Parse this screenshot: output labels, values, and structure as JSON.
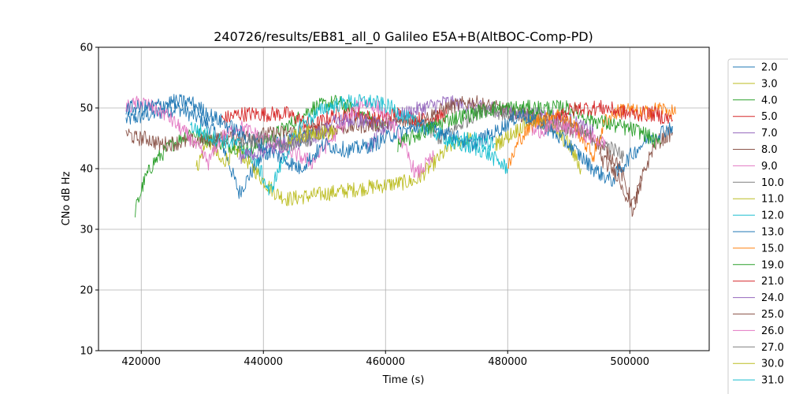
{
  "chart_data": {
    "type": "line",
    "title": "240726/results/EB81_all_0 Galileo E5A+B(AltBOC-Comp-PD)",
    "xlabel": "Time (s)",
    "ylabel": "CNo dB Hz",
    "xlim": [
      413000,
      513000
    ],
    "ylim": [
      10,
      60
    ],
    "xticks": [
      420000,
      440000,
      460000,
      480000,
      500000
    ],
    "xtick_labels": [
      "420000",
      "440000",
      "460000",
      "480000",
      "500000"
    ],
    "yticks": [
      10,
      20,
      30,
      40,
      50,
      60
    ],
    "ytick_labels": [
      "10",
      "20",
      "30",
      "40",
      "50",
      "60"
    ],
    "grid": true,
    "legend_position": "right (outside plot, cropped at bottom)",
    "series": [
      {
        "name": "2.0",
        "color": "#1f77b4",
        "points": [
          [
            417500,
            48
          ],
          [
            422000,
            49
          ],
          [
            426000,
            50
          ],
          [
            430000,
            48
          ],
          [
            433000,
            45
          ],
          [
            436000,
            36
          ],
          [
            439000,
            41
          ],
          [
            442000,
            44
          ],
          [
            446000,
            45
          ],
          [
            450000,
            46
          ]
        ]
      },
      {
        "name": "3.0",
        "color": "#bcbd22",
        "points": [
          [
            429000,
            40
          ],
          [
            431000,
            45
          ],
          [
            433000,
            41
          ],
          [
            436000,
            43
          ],
          [
            440000,
            38
          ],
          [
            442000,
            36
          ],
          [
            444000,
            35
          ],
          [
            465000,
            38
          ],
          [
            468000,
            41
          ],
          [
            471000,
            44
          ],
          [
            474000,
            45
          ]
        ]
      },
      {
        "name": "4.0",
        "color": "#2ca02c",
        "points": [
          [
            419000,
            33
          ],
          [
            420500,
            38
          ],
          [
            422000,
            41
          ],
          [
            425000,
            44
          ],
          [
            428000,
            46
          ],
          [
            431000,
            45
          ],
          [
            434000,
            44
          ],
          [
            438000,
            43
          ],
          [
            444000,
            47
          ],
          [
            448000,
            50
          ],
          [
            452000,
            51
          ],
          [
            456000,
            49
          ],
          [
            460000,
            47
          ]
        ]
      },
      {
        "name": "5.0",
        "color": "#d62728",
        "points": [
          [
            433000,
            48
          ],
          [
            436000,
            49
          ],
          [
            440000,
            49
          ],
          [
            444000,
            49
          ],
          [
            446000,
            48
          ],
          [
            448000,
            47
          ],
          [
            452000,
            49
          ],
          [
            456000,
            49
          ],
          [
            458000,
            48
          ],
          [
            462000,
            49
          ],
          [
            466000,
            48
          ],
          [
            470000,
            49
          ]
        ]
      },
      {
        "name": "7.0",
        "color": "#9467bd",
        "points": [
          [
            457000,
            43
          ],
          [
            460000,
            47
          ],
          [
            463000,
            49
          ],
          [
            466000,
            50
          ],
          [
            470000,
            51
          ],
          [
            474000,
            50
          ],
          [
            478000,
            50
          ],
          [
            482000,
            49
          ],
          [
            486000,
            49
          ],
          [
            490000,
            48
          ],
          [
            494000,
            46
          ]
        ]
      },
      {
        "name": "8.0",
        "color": "#8c564b",
        "points": [
          [
            417500,
            46
          ],
          [
            419000,
            45
          ],
          [
            421000,
            45
          ],
          [
            423000,
            44
          ],
          [
            466000,
            48
          ],
          [
            470000,
            50
          ],
          [
            474000,
            51
          ],
          [
            478000,
            50
          ],
          [
            482000,
            49
          ],
          [
            486000,
            48
          ],
          [
            490000,
            47
          ],
          [
            494000,
            45
          ],
          [
            498000,
            41
          ],
          [
            500500,
            34
          ],
          [
            501500,
            37
          ],
          [
            504000,
            44
          ],
          [
            507000,
            46
          ]
        ]
      },
      {
        "name": "9.0",
        "color": "#e377c2",
        "points": [
          [
            417500,
            50
          ],
          [
            420000,
            51
          ],
          [
            424000,
            49
          ],
          [
            428000,
            45
          ],
          [
            431000,
            41
          ],
          [
            433000,
            45
          ],
          [
            436000,
            47
          ],
          [
            440000,
            45
          ],
          [
            444000,
            43
          ],
          [
            448000,
            41
          ],
          [
            452000,
            46
          ],
          [
            456000,
            51
          ],
          [
            459000,
            50
          ],
          [
            462000,
            46
          ],
          [
            465000,
            39
          ],
          [
            468000,
            42
          ]
        ]
      },
      {
        "name": "10.0",
        "color": "#7f7f7f",
        "points": [
          [
            466000,
            47
          ],
          [
            469000,
            45
          ],
          [
            472000,
            47
          ],
          [
            476000,
            50
          ],
          [
            480000,
            49
          ],
          [
            484000,
            48
          ],
          [
            488000,
            47
          ],
          [
            492000,
            46
          ],
          [
            496000,
            44
          ],
          [
            499000,
            42
          ]
        ]
      },
      {
        "name": "11.0",
        "color": "#bcbd22",
        "points": [
          [
            478000,
            44
          ],
          [
            481000,
            46
          ],
          [
            484000,
            48
          ],
          [
            487000,
            47
          ],
          [
            490000,
            44
          ],
          [
            492000,
            40
          ]
        ]
      },
      {
        "name": "12.0",
        "color": "#17becf",
        "points": [
          [
            428000,
            47
          ],
          [
            432000,
            45
          ],
          [
            436000,
            44
          ],
          [
            439000,
            41
          ],
          [
            441000,
            36
          ],
          [
            443000,
            41
          ],
          [
            446000,
            47
          ],
          [
            450000,
            50
          ],
          [
            454000,
            51
          ],
          [
            458000,
            51
          ],
          [
            461000,
            50
          ],
          [
            464000,
            48
          ],
          [
            468000,
            46
          ],
          [
            472000,
            44
          ],
          [
            476000,
            43
          ],
          [
            480000,
            40
          ]
        ]
      },
      {
        "name": "13.0",
        "color": "#1f77b4",
        "points": [
          [
            417500,
            50
          ],
          [
            421000,
            50
          ],
          [
            425000,
            51
          ],
          [
            428000,
            51
          ],
          [
            431000,
            49
          ],
          [
            446000,
            40
          ],
          [
            450000,
            44
          ],
          [
            454000,
            43
          ],
          [
            458000,
            44
          ],
          [
            462000,
            46
          ],
          [
            466000,
            47
          ],
          [
            470000,
            46
          ],
          [
            474000,
            44
          ],
          [
            478000,
            46
          ],
          [
            482000,
            49
          ],
          [
            486000,
            47
          ],
          [
            490000,
            44
          ],
          [
            494000,
            40
          ],
          [
            497000,
            38
          ],
          [
            500000,
            42
          ],
          [
            503000,
            45
          ],
          [
            507000,
            47
          ]
        ]
      },
      {
        "name": "15.0",
        "color": "#ff7f0e",
        "points": [
          [
            480000,
            40
          ],
          [
            482000,
            45
          ],
          [
            485000,
            48
          ],
          [
            488000,
            49
          ],
          [
            491000,
            47
          ],
          [
            494000,
            42
          ],
          [
            496000,
            48
          ],
          [
            499000,
            50
          ],
          [
            502000,
            49
          ],
          [
            505000,
            50
          ],
          [
            507500,
            49
          ]
        ]
      },
      {
        "name": "19.0",
        "color": "#2ca02c",
        "points": [
          [
            462000,
            44
          ],
          [
            466000,
            46
          ],
          [
            470000,
            48
          ],
          [
            474000,
            49
          ],
          [
            478000,
            50
          ],
          [
            482000,
            50
          ],
          [
            486000,
            50
          ],
          [
            490000,
            50
          ],
          [
            494000,
            48
          ],
          [
            498000,
            47
          ],
          [
            502000,
            46
          ],
          [
            505000,
            44
          ]
        ]
      },
      {
        "name": "21.0",
        "color": "#d62728",
        "points": [
          [
            488000,
            49
          ],
          [
            492000,
            50
          ],
          [
            496000,
            50
          ],
          [
            500000,
            49
          ],
          [
            504000,
            49
          ],
          [
            507000,
            48
          ]
        ]
      },
      {
        "name": "24.0",
        "color": "#9467bd",
        "points": [
          [
            436000,
            42
          ],
          [
            440000,
            43
          ],
          [
            444000,
            44
          ],
          [
            448000,
            45
          ],
          [
            452000,
            48
          ],
          [
            456000,
            48
          ],
          [
            460000,
            47
          ]
        ]
      },
      {
        "name": "25.0",
        "color": "#8c564b",
        "points": [
          [
            495000,
            42
          ],
          [
            498000,
            39
          ],
          [
            500500,
            33
          ],
          [
            502000,
            38
          ]
        ]
      },
      {
        "name": "26.0",
        "color": "#e377c2",
        "points": [
          [
            484000,
            46
          ],
          [
            488000,
            47
          ],
          [
            492000,
            46
          ],
          [
            496000,
            44
          ]
        ]
      },
      {
        "name": "27.0",
        "color": "#7f7f7f",
        "points": [
          [
            436000,
            44
          ],
          [
            440000,
            45
          ],
          [
            444000,
            44
          ],
          [
            448000,
            45
          ]
        ]
      },
      {
        "name": "30.0",
        "color": "#bcbd22",
        "points": [
          [
            444000,
            45
          ],
          [
            448000,
            46
          ],
          [
            452000,
            46
          ]
        ]
      },
      {
        "name": "31.0",
        "color": "#17becf",
        "points": [
          [
            470000,
            44
          ],
          [
            474000,
            45
          ],
          [
            478000,
            44
          ]
        ]
      }
    ]
  }
}
